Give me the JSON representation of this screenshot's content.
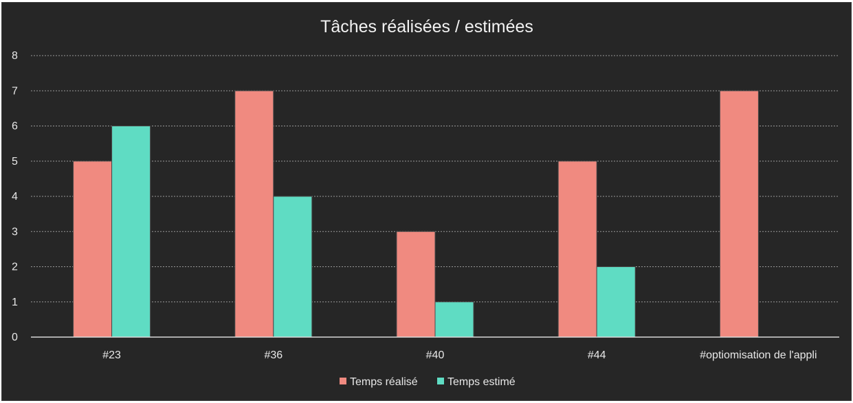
{
  "chart_data": {
    "type": "bar",
    "title": "Tâches réalisées / estimées",
    "xlabel": "",
    "ylabel": "",
    "categories": [
      "#23",
      "#36",
      "#40",
      "#44",
      "#optiomisation de l'appli"
    ],
    "series": [
      {
        "name": "Temps réalisé",
        "values": [
          5,
          7,
          3,
          5,
          7
        ],
        "color": "#f08a80"
      },
      {
        "name": "Temps estimé",
        "values": [
          6,
          4,
          1,
          2,
          0
        ],
        "color": "#5fdcc3"
      }
    ],
    "ylim": [
      0,
      8
    ],
    "yticks": [
      "0",
      "1",
      "2",
      "3",
      "4",
      "5",
      "6",
      "7",
      "8"
    ],
    "grid": true,
    "legend_position": "bottom",
    "colors": {
      "background": "#262626",
      "text": "#e8e8e8",
      "grid": "#9a9a9a"
    }
  }
}
